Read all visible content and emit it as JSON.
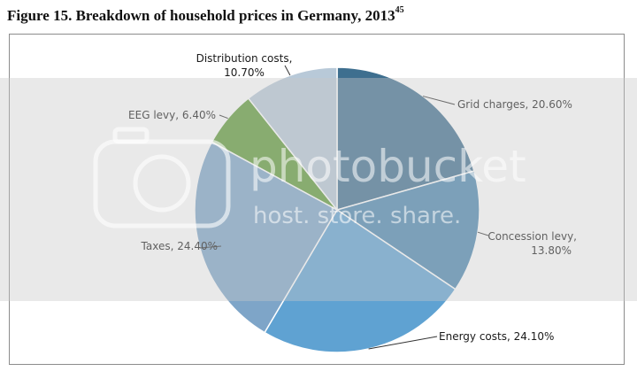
{
  "figure": {
    "title": "Figure 15. Breakdown of household prices in Germany, 2013",
    "footnote": "45"
  },
  "watermark": {
    "brand": "photobucket",
    "tagline": "host. store. share."
  },
  "chart_data": {
    "type": "pie",
    "title": "Breakdown of household prices in Germany, 2013",
    "start_angle_deg": 0,
    "direction": "clockwise",
    "slices": [
      {
        "name": "Grid charges",
        "value": 20.6,
        "label": "Grid charges, 20.60%",
        "color": "#3e6f8f"
      },
      {
        "name": "Concession levy",
        "value": 13.8,
        "label": "Concession levy, 13.80%",
        "color": "#4a86b0"
      },
      {
        "name": "Energy costs",
        "value": 24.1,
        "label": "Energy costs, 24.10%",
        "color": "#5fa2d2"
      },
      {
        "name": "Taxes",
        "value": 24.4,
        "label": "Taxes, 24.40%",
        "color": "#7ea5c8"
      },
      {
        "name": "EEG levy",
        "value": 6.4,
        "label": "EEG levy, 6.40%",
        "color": "#5e9a36"
      },
      {
        "name": "Distribution costs",
        "value": 10.7,
        "label": "Distribution costs, 10.70%",
        "color": "#b8c9d8"
      }
    ]
  }
}
